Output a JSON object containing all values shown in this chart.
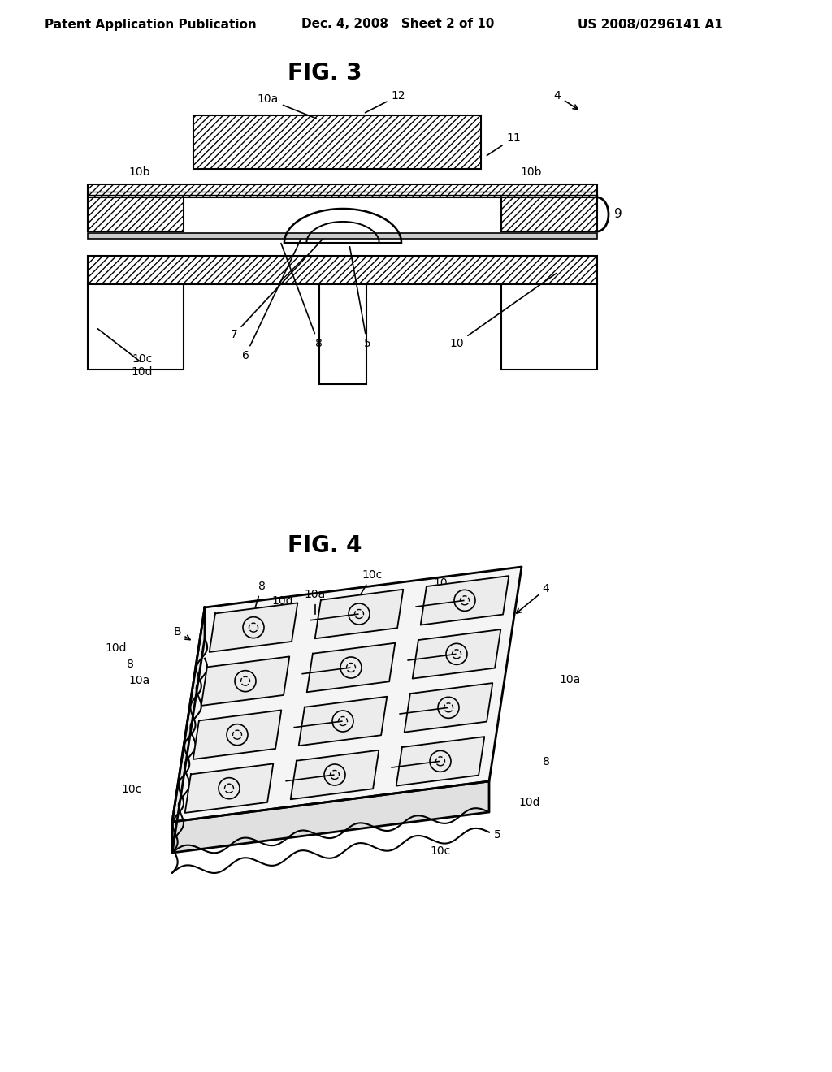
{
  "background_color": "#ffffff",
  "header_left": "Patent Application Publication",
  "header_center": "Dec. 4, 2008   Sheet 2 of 10",
  "header_right": "US 2008/0296141 A1",
  "fig3_title": "FIG. 3",
  "fig4_title": "FIG. 4",
  "hatch_pattern": "////",
  "line_color": "#000000",
  "hatch_color": "#000000"
}
